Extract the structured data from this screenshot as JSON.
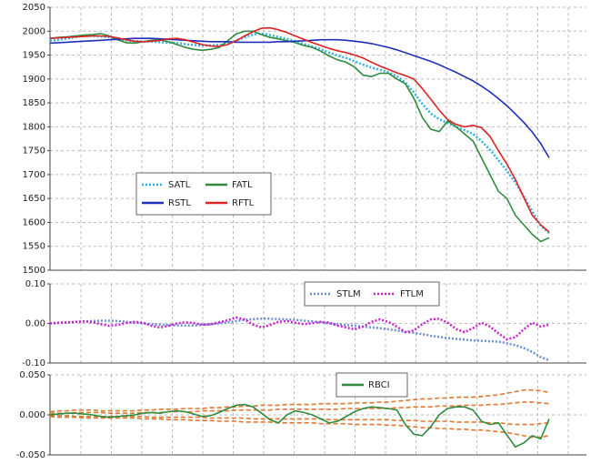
{
  "chart_data": [
    {
      "type": "line",
      "ylim": [
        1500,
        2050
      ],
      "yticks": [
        1500,
        1550,
        1600,
        1650,
        1700,
        1750,
        1800,
        1850,
        1900,
        1950,
        2000,
        2050
      ],
      "grid": true,
      "legend": "center-left",
      "categories": [
        null,
        null,
        null,
        null,
        null,
        null,
        null,
        null,
        null,
        null,
        null,
        null,
        null,
        null,
        null,
        null,
        null,
        null,
        null,
        null,
        null,
        null,
        null,
        null,
        null,
        null,
        null,
        null,
        null,
        null,
        null,
        null,
        null,
        null,
        null,
        null,
        null,
        null,
        null,
        null,
        null,
        null,
        null,
        null,
        null,
        null,
        null,
        null,
        null,
        null,
        null,
        null,
        null,
        null,
        null,
        null,
        null,
        null,
        null,
        null
      ],
      "series": [
        {
          "name": "SATL",
          "color": "#30b0e0",
          "style": "dotted",
          "values": [
            1980,
            1982,
            1985,
            1988,
            1990,
            1990,
            1989,
            1987,
            1984,
            1981,
            1979,
            1978,
            1978,
            1977,
            1976,
            1975,
            1973,
            1971,
            1970,
            1970,
            1971,
            1974,
            1980,
            1987,
            1993,
            1995,
            1992,
            1988,
            1984,
            1979,
            1973,
            1968,
            1962,
            1955,
            1949,
            1944,
            1937,
            1930,
            1924,
            1919,
            1914,
            1906,
            1893,
            1872,
            1848,
            1828,
            1816,
            1808,
            1800,
            1793,
            1785,
            1770,
            1752,
            1730,
            1708,
            1684,
            1655,
            1623,
            1593,
            1577
          ]
        },
        {
          "name": "FATL",
          "color": "#2e8b3e",
          "style": "solid",
          "values": [
            1985,
            1987,
            1988,
            1990,
            1992,
            1993,
            1995,
            1990,
            1982,
            1976,
            1975,
            1978,
            1981,
            1982,
            1978,
            1972,
            1966,
            1962,
            1960,
            1962,
            1966,
            1980,
            1994,
            2000,
            2000,
            1993,
            1987,
            1984,
            1980,
            1976,
            1970,
            1966,
            1958,
            1948,
            1940,
            1935,
            1925,
            1908,
            1905,
            1912,
            1912,
            1900,
            1890,
            1860,
            1820,
            1795,
            1790,
            1812,
            1800,
            1785,
            1770,
            1735,
            1700,
            1665,
            1650,
            1615,
            1595,
            1575,
            1560,
            1568
          ]
        },
        {
          "name": "RSTL",
          "color": "#1f2fbb",
          "style": "solid",
          "values": [
            1975,
            1976,
            1977,
            1978,
            1979,
            1980,
            1981,
            1982,
            1983,
            1984,
            1985,
            1985,
            1985,
            1984,
            1983,
            1982,
            1981,
            1980,
            1979,
            1978,
            1978,
            1978,
            1977,
            1977,
            1977,
            1977,
            1977,
            1978,
            1978,
            1979,
            1980,
            1981,
            1982,
            1982,
            1982,
            1981,
            1979,
            1977,
            1974,
            1970,
            1966,
            1961,
            1955,
            1949,
            1943,
            1937,
            1930,
            1922,
            1914,
            1905,
            1896,
            1885,
            1873,
            1859,
            1844,
            1827,
            1809,
            1789,
            1765,
            1735
          ]
        },
        {
          "name": "RFTL",
          "color": "#dd2222",
          "style": "solid",
          "values": [
            1985,
            1986,
            1987,
            1988,
            1989,
            1990,
            1990,
            1989,
            1986,
            1982,
            1979,
            1978,
            1979,
            1981,
            1984,
            1985,
            1982,
            1977,
            1972,
            1969,
            1968,
            1972,
            1980,
            1990,
            1999,
            2006,
            2007,
            2003,
            1997,
            1990,
            1983,
            1976,
            1970,
            1964,
            1959,
            1955,
            1950,
            1944,
            1935,
            1927,
            1920,
            1913,
            1907,
            1900,
            1880,
            1858,
            1835,
            1815,
            1805,
            1800,
            1803,
            1798,
            1780,
            1750,
            1722,
            1690,
            1652,
            1615,
            1595,
            1580
          ]
        }
      ]
    },
    {
      "type": "line",
      "ylim": [
        -0.1,
        0.1
      ],
      "yticks": [
        {
          "value": -0.1,
          "label": "-0.10"
        },
        {
          "value": 0,
          "label": "0.00"
        },
        {
          "value": 0.1,
          "label": "0.10"
        }
      ],
      "grid": true,
      "legend": "top-center",
      "categories": [
        null,
        null,
        null,
        null,
        null,
        null,
        null,
        null,
        null,
        null,
        null,
        null,
        null,
        null,
        null,
        null,
        null,
        null,
        null,
        null,
        null,
        null,
        null,
        null,
        null,
        null,
        null,
        null,
        null,
        null,
        null,
        null,
        null,
        null,
        null,
        null,
        null,
        null,
        null,
        null,
        null,
        null,
        null,
        null,
        null,
        null,
        null,
        null,
        null,
        null,
        null,
        null,
        null,
        null,
        null,
        null,
        null,
        null,
        null,
        null
      ],
      "series": [
        {
          "name": "STLM",
          "color": "#6a8fd0",
          "style": "dotted",
          "values": [
            0,
            0.001,
            0.002,
            0.004,
            0.005,
            0.006,
            0.007,
            0.007,
            0.006,
            0.004,
            0.002,
            0,
            -0.002,
            -0.003,
            -0.004,
            -0.005,
            -0.005,
            -0.005,
            -0.004,
            -0.002,
            0,
            0.003,
            0.006,
            0.009,
            0.011,
            0.012,
            0.012,
            0.011,
            0.01,
            0.009,
            0.007,
            0.005,
            0.003,
            0,
            -0.002,
            -0.004,
            -0.006,
            -0.008,
            -0.01,
            -0.012,
            -0.015,
            -0.018,
            -0.021,
            -0.024,
            -0.027,
            -0.031,
            -0.034,
            -0.037,
            -0.039,
            -0.041,
            -0.043,
            -0.044,
            -0.045,
            -0.046,
            -0.05,
            -0.055,
            -0.062,
            -0.072,
            -0.085,
            -0.093
          ]
        },
        {
          "name": "FTLM",
          "color": "#cc22cc",
          "style": "dotted",
          "values": [
            0,
            0.002,
            0.003,
            0.004,
            0.005,
            0.003,
            -0.002,
            -0.006,
            -0.004,
            0.001,
            0.004,
            0.002,
            -0.006,
            -0.01,
            -0.006,
            0,
            0.003,
            0.001,
            -0.003,
            -0.002,
            0.003,
            0.008,
            0.015,
            0.01,
            -0.003,
            -0.01,
            -0.004,
            0.004,
            0.006,
            0.002,
            -0.002,
            0.001,
            0.004,
            0.002,
            -0.006,
            -0.01,
            -0.015,
            -0.008,
            0.004,
            0.01,
            0.004,
            -0.008,
            -0.022,
            -0.018,
            -0.002,
            0.01,
            0.012,
            0.002,
            -0.014,
            -0.022,
            -0.012,
            0.002,
            -0.008,
            -0.025,
            -0.04,
            -0.035,
            -0.015,
            0.002,
            -0.008,
            -0.003
          ]
        }
      ]
    },
    {
      "type": "line",
      "ylim": [
        -0.05,
        0.05
      ],
      "yticks": [
        {
          "value": -0.05,
          "label": "-0.050"
        },
        {
          "value": 0,
          "label": "0.000"
        },
        {
          "value": 0.05,
          "label": "0.050"
        }
      ],
      "grid": true,
      "legend": "top-center",
      "categories": [
        null,
        null,
        null,
        null,
        null,
        null,
        null,
        null,
        null,
        null,
        null,
        null,
        null,
        null,
        null,
        null,
        null,
        null,
        null,
        null,
        null,
        null,
        null,
        null,
        null,
        null,
        null,
        null,
        null,
        null,
        null,
        null,
        null,
        null,
        null,
        null,
        null,
        null,
        null,
        null,
        null,
        null,
        null,
        null,
        null,
        null,
        null,
        null,
        null,
        null,
        null,
        null,
        null,
        null,
        null,
        null,
        null,
        null,
        null,
        null
      ],
      "series": [
        {
          "color": "#e8742a",
          "style": "dashed",
          "values": [
            0.004,
            0.005,
            0.005,
            0.006,
            0.006,
            0.006,
            0.005,
            0.005,
            0.005,
            0.005,
            0.005,
            0.006,
            0.006,
            0.007,
            0.007,
            0.007,
            0.008,
            0.008,
            0.008,
            0.009,
            0.009,
            0.01,
            0.01,
            0.011,
            0.011,
            0.012,
            0.012,
            0.012,
            0.013,
            0.013,
            0.013,
            0.013,
            0.014,
            0.014,
            0.014,
            0.014,
            0.015,
            0.015,
            0.015,
            0.016,
            0.016,
            0.017,
            0.018,
            0.019,
            0.02,
            0.02,
            0.021,
            0.021,
            0.022,
            0.022,
            0.022,
            0.023,
            0.024,
            0.025,
            0.027,
            0.029,
            0.031,
            0.031,
            0.03,
            0.028
          ]
        },
        {
          "color": "#e8742a",
          "style": "dashed",
          "values": [
            0.002,
            0.002,
            0.002,
            0.003,
            0.003,
            0.003,
            0.003,
            0.002,
            0.002,
            0.002,
            0.002,
            0.003,
            0.003,
            0.003,
            0.004,
            0.004,
            0.004,
            0.004,
            0.005,
            0.005,
            0.005,
            0.005,
            0.006,
            0.006,
            0.006,
            0.006,
            0.006,
            0.007,
            0.007,
            0.007,
            0.007,
            0.007,
            0.007,
            0.007,
            0.007,
            0.008,
            0.008,
            0.008,
            0.008,
            0.008,
            0.008,
            0.009,
            0.009,
            0.01,
            0.01,
            0.01,
            0.011,
            0.011,
            0.011,
            0.012,
            0.012,
            0.012,
            0.013,
            0.013,
            0.014,
            0.015,
            0.016,
            0.016,
            0.015,
            0.014
          ]
        },
        {
          "color": "#e8742a",
          "style": "dashed",
          "values": [
            -0.001,
            -0.001,
            -0.001,
            -0.002,
            -0.002,
            -0.002,
            -0.002,
            -0.002,
            -0.002,
            -0.002,
            -0.002,
            -0.002,
            -0.003,
            -0.003,
            -0.003,
            -0.003,
            -0.003,
            -0.003,
            -0.003,
            -0.004,
            -0.004,
            -0.004,
            -0.004,
            -0.004,
            -0.005,
            -0.005,
            -0.005,
            -0.005,
            -0.005,
            -0.005,
            -0.005,
            -0.005,
            -0.005,
            -0.006,
            -0.006,
            -0.006,
            -0.006,
            -0.006,
            -0.006,
            -0.006,
            -0.006,
            -0.007,
            -0.007,
            -0.007,
            -0.008,
            -0.008,
            -0.008,
            -0.008,
            -0.009,
            -0.009,
            -0.009,
            -0.009,
            -0.01,
            -0.01,
            -0.011,
            -0.012,
            -0.012,
            -0.012,
            -0.011,
            -0.01
          ]
        },
        {
          "color": "#e8742a",
          "style": "dashed",
          "values": [
            -0.002,
            -0.003,
            -0.003,
            -0.003,
            -0.004,
            -0.004,
            -0.004,
            -0.004,
            -0.004,
            -0.004,
            -0.004,
            -0.005,
            -0.005,
            -0.005,
            -0.006,
            -0.006,
            -0.006,
            -0.007,
            -0.007,
            -0.007,
            -0.008,
            -0.008,
            -0.008,
            -0.009,
            -0.009,
            -0.009,
            -0.009,
            -0.01,
            -0.01,
            -0.01,
            -0.01,
            -0.01,
            -0.011,
            -0.011,
            -0.011,
            -0.011,
            -0.012,
            -0.012,
            -0.012,
            -0.012,
            -0.013,
            -0.013,
            -0.014,
            -0.015,
            -0.016,
            -0.016,
            -0.017,
            -0.017,
            -0.018,
            -0.018,
            -0.019,
            -0.019,
            -0.02,
            -0.021,
            -0.022,
            -0.024,
            -0.026,
            -0.028,
            -0.028,
            -0.026
          ]
        },
        {
          "name": "RBCI",
          "color": "#2e8b3e",
          "style": "solid",
          "values": [
            0,
            0.001,
            0.002,
            0.002,
            0.001,
            0,
            -0.002,
            -0.003,
            -0.002,
            -0.001,
            0,
            0.002,
            0.003,
            0.002,
            0.004,
            0.005,
            0.004,
            0.001,
            -0.002,
            -0.001,
            0.003,
            0.008,
            0.012,
            0.013,
            0.01,
            0.002,
            -0.006,
            -0.01,
            0,
            0.005,
            0.003,
            0,
            -0.005,
            -0.01,
            -0.008,
            -0.002,
            0.004,
            0.008,
            0.01,
            0.009,
            0.008,
            0.006,
            -0.012,
            -0.024,
            -0.026,
            -0.015,
            0,
            0.008,
            0.01,
            0.01,
            0.006,
            -0.008,
            -0.012,
            -0.01,
            -0.025,
            -0.04,
            -0.035,
            -0.026,
            -0.03,
            -0.005
          ]
        }
      ]
    }
  ]
}
